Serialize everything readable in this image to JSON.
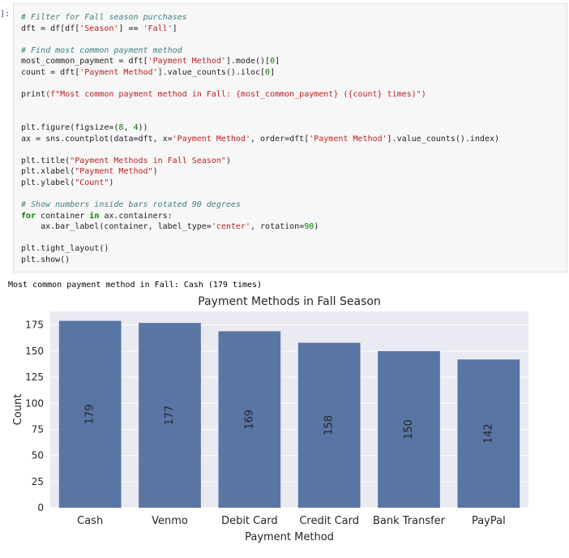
{
  "cell": {
    "prompt": "]:",
    "code_lines": [
      [
        {
          "t": "# Filter for Fall season purchases",
          "c": "cm"
        }
      ],
      [
        {
          "t": "dft = df[df["
        },
        {
          "t": "'Season'",
          "c": "st"
        },
        {
          "t": "] == "
        },
        {
          "t": "'Fall'",
          "c": "st"
        },
        {
          "t": "]"
        }
      ],
      [],
      [
        {
          "t": "# Find most common payment method",
          "c": "cm"
        }
      ],
      [
        {
          "t": "most_common_payment = dft["
        },
        {
          "t": "'Payment Method'",
          "c": "st"
        },
        {
          "t": "].mode()["
        },
        {
          "t": "0",
          "c": "nm"
        },
        {
          "t": "]"
        }
      ],
      [
        {
          "t": "count = dft["
        },
        {
          "t": "'Payment Method'",
          "c": "st"
        },
        {
          "t": "].value_counts().iloc["
        },
        {
          "t": "0",
          "c": "nm"
        },
        {
          "t": "]"
        }
      ],
      [],
      [
        {
          "t": "print"
        },
        {
          "t": "(f\"Most common payment method in Fall: {most_common_payment} ({count} times)\")",
          "c": "st"
        }
      ],
      [],
      [],
      [
        {
          "t": "plt.figure(figsize=("
        },
        {
          "t": "8",
          "c": "nm"
        },
        {
          "t": ", "
        },
        {
          "t": "4",
          "c": "nm"
        },
        {
          "t": "))"
        }
      ],
      [
        {
          "t": "ax = sns.countplot(data=dft, x="
        },
        {
          "t": "'Payment Method'",
          "c": "st"
        },
        {
          "t": ", order=dft["
        },
        {
          "t": "'Payment Method'",
          "c": "st"
        },
        {
          "t": "].value_counts().index)"
        }
      ],
      [],
      [
        {
          "t": "plt.title("
        },
        {
          "t": "\"Payment Methods in Fall Season\"",
          "c": "st"
        },
        {
          "t": ")"
        }
      ],
      [
        {
          "t": "plt.xlabel("
        },
        {
          "t": "\"Payment Method\"",
          "c": "st"
        },
        {
          "t": ")"
        }
      ],
      [
        {
          "t": "plt.ylabel("
        },
        {
          "t": "\"Count\"",
          "c": "st"
        },
        {
          "t": ")"
        }
      ],
      [],
      [
        {
          "t": "# Show numbers inside bars rotated 90 degrees",
          "c": "cm"
        }
      ],
      [
        {
          "t": "for",
          "c": "kw"
        },
        {
          "t": " container "
        },
        {
          "t": "in",
          "c": "kw"
        },
        {
          "t": " ax.containers:"
        }
      ],
      [
        {
          "t": "    ax.bar_label(container, label_type="
        },
        {
          "t": "'center'",
          "c": "st"
        },
        {
          "t": ", rotation="
        },
        {
          "t": "90",
          "c": "nm"
        },
        {
          "t": ")"
        }
      ],
      [],
      [
        {
          "t": "plt.tight_layout()"
        }
      ],
      [
        {
          "t": "plt.show()"
        }
      ]
    ]
  },
  "output": {
    "stdout": "Most common payment method in Fall: Cash (179 times)"
  },
  "colors": {
    "bar": "#5875a4",
    "plot_bg": "#eaeaf2",
    "grid": "#ffffff",
    "text": "#262626"
  },
  "chart_data": {
    "type": "bar",
    "title": "Payment Methods in Fall Season",
    "xlabel": "Payment Method",
    "ylabel": "Count",
    "categories": [
      "Cash",
      "Venmo",
      "Debit Card",
      "Credit Card",
      "Bank Transfer",
      "PayPal"
    ],
    "values": [
      179,
      177,
      169,
      158,
      150,
      142
    ],
    "data_labels": [
      "179",
      "177",
      "169",
      "158",
      "150",
      "142"
    ],
    "yticks": [
      0,
      25,
      50,
      75,
      100,
      125,
      150,
      175
    ],
    "ylim": [
      0,
      188
    ],
    "grid": true,
    "legend": "none"
  }
}
